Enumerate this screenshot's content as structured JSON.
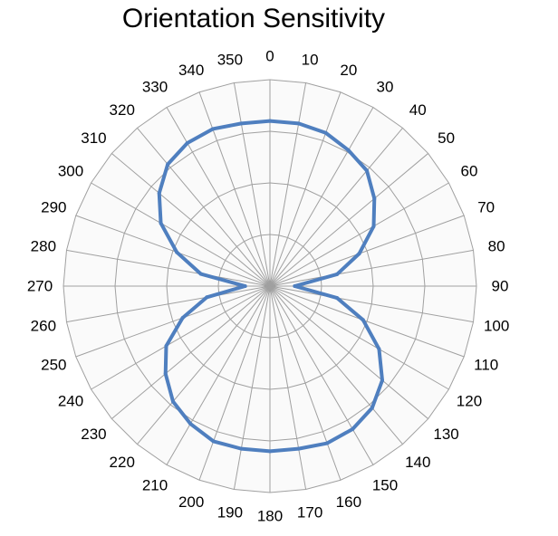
{
  "chart_data": {
    "type": "radar",
    "title": "Orientation Sensitivity",
    "categories": [
      "0",
      "10",
      "20",
      "30",
      "40",
      "50",
      "60",
      "70",
      "80",
      "90",
      "100",
      "110",
      "120",
      "130",
      "140",
      "150",
      "160",
      "170",
      "180",
      "190",
      "200",
      "210",
      "220",
      "230",
      "240",
      "250",
      "260",
      "270",
      "280",
      "290",
      "300",
      "310",
      "320",
      "330",
      "340",
      "350"
    ],
    "series": [
      {
        "values": [
          0.8,
          0.8,
          0.79,
          0.76,
          0.73,
          0.66,
          0.58,
          0.46,
          0.33,
          0.12,
          0.33,
          0.48,
          0.61,
          0.71,
          0.77,
          0.8,
          0.81,
          0.8,
          0.8,
          0.8,
          0.8,
          0.77,
          0.73,
          0.66,
          0.58,
          0.45,
          0.31,
          0.12,
          0.34,
          0.48,
          0.61,
          0.7,
          0.77,
          0.8,
          0.81,
          0.8
        ],
        "color": "#4F7FBF"
      }
    ],
    "rmin": 0,
    "rmax": 1,
    "ring_count": 4,
    "grid": true,
    "grid_color": "#A0A0A0",
    "plot_background": "#FAFAFA"
  }
}
